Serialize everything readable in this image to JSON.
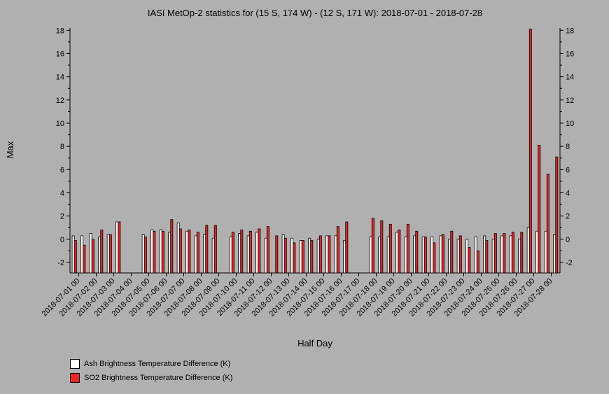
{
  "chart_data": {
    "type": "bar",
    "title": "IASI MetOp-2 statistics for (15 S, 174 W) - (12 S, 171 W): 2018-07-01 - 2018-07-28",
    "xlabel": "Half Day",
    "ylabel": "Max",
    "ylim": [
      -2.9,
      18.2
    ],
    "yticks": [
      -2,
      0,
      2,
      4,
      6,
      8,
      10,
      12,
      14,
      16,
      18
    ],
    "categories": [
      "2018-07-01 00",
      "2018-07-01 12",
      "2018-07-02 00",
      "2018-07-02 12",
      "2018-07-03 00",
      "2018-07-03 12",
      "2018-07-04 00",
      "2018-07-04 12",
      "2018-07-05 00",
      "2018-07-05 12",
      "2018-07-06 00",
      "2018-07-06 12",
      "2018-07-07 00",
      "2018-07-07 12",
      "2018-07-08 00",
      "2018-07-08 12",
      "2018-07-09 00",
      "2018-07-09 12",
      "2018-07-10 00",
      "2018-07-10 12",
      "2018-07-11 00",
      "2018-07-11 12",
      "2018-07-12 00",
      "2018-07-12 12",
      "2018-07-13 00",
      "2018-07-13 12",
      "2018-07-14 00",
      "2018-07-14 12",
      "2018-07-15 00",
      "2018-07-15 12",
      "2018-07-16 00",
      "2018-07-16 12",
      "2018-07-17 00",
      "2018-07-17 12",
      "2018-07-18 00",
      "2018-07-18 12",
      "2018-07-19 00",
      "2018-07-19 12",
      "2018-07-20 00",
      "2018-07-20 12",
      "2018-07-21 00",
      "2018-07-21 12",
      "2018-07-22 00",
      "2018-07-22 12",
      "2018-07-23 00",
      "2018-07-23 12",
      "2018-07-24 00",
      "2018-07-24 12",
      "2018-07-25 00",
      "2018-07-25 12",
      "2018-07-26 00",
      "2018-07-26 12",
      "2018-07-27 00",
      "2018-07-27 12",
      "2018-07-28 00",
      "2018-07-28 12"
    ],
    "tick_labels": [
      "2018-07-01 00",
      "2018-07-02 00",
      "2018-07-03 00",
      "2018-07-04 00",
      "2018-07-05 00",
      "2018-07-06 00",
      "2018-07-07 00",
      "2018-07-08 00",
      "2018-07-09 00",
      "2018-07-10 00",
      "2018-07-11 00",
      "2018-07-12 00",
      "2018-07-13 00",
      "2018-07-14 00",
      "2018-07-15 00",
      "2018-07-16 00",
      "2018-07-17 00",
      "2018-07-18 00",
      "2018-07-19 00",
      "2018-07-20 00",
      "2018-07-21 00",
      "2018-07-22 00",
      "2018-07-23 00",
      "2018-07-24 00",
      "2018-07-25 00",
      "2018-07-26 00",
      "2018-07-27 00",
      "2018-07-28 00"
    ],
    "series": [
      {
        "name": "Ash Brightness Temperature Difference (K)",
        "color": "#ffffff",
        "values": [
          0.3,
          0.3,
          0.5,
          0.2,
          0.4,
          1.5,
          null,
          null,
          0.4,
          0.8,
          0.8,
          0.6,
          1.4,
          0.7,
          0.3,
          0.4,
          0.1,
          null,
          0.2,
          0.5,
          0.3,
          0.6,
          0.1,
          null,
          0.4,
          0.1,
          -0.1,
          0.1,
          0.0,
          0.3,
          0.3,
          -0.1,
          null,
          null,
          0.2,
          0.2,
          0.2,
          0.6,
          0.2,
          0.3,
          0.2,
          0.2,
          0.3,
          0.0,
          0.0,
          0.0,
          0.2,
          0.3,
          0.0,
          0.3,
          0.3,
          0.0,
          1.0,
          0.7,
          0.7,
          0.4
        ]
      },
      {
        "name": "SO2 Brightness Temperature Difference (K)",
        "color": "#ee2222",
        "values": [
          -0.1,
          -0.5,
          0.0,
          0.8,
          0.4,
          1.5,
          null,
          null,
          0.2,
          0.7,
          0.7,
          1.7,
          0.9,
          0.8,
          0.6,
          1.2,
          1.2,
          null,
          0.6,
          0.8,
          0.7,
          0.9,
          1.1,
          0.3,
          0.1,
          -0.3,
          -0.1,
          -0.1,
          0.3,
          0.3,
          1.1,
          1.5,
          null,
          null,
          1.8,
          1.6,
          1.3,
          0.8,
          1.3,
          0.7,
          0.2,
          -0.3,
          0.4,
          0.7,
          0.3,
          -0.7,
          -1.0,
          -0.1,
          0.5,
          0.5,
          0.6,
          0.6,
          18.1,
          8.1,
          5.6,
          7.1
        ]
      }
    ],
    "legend_position": "bottom-left",
    "grid": false
  }
}
